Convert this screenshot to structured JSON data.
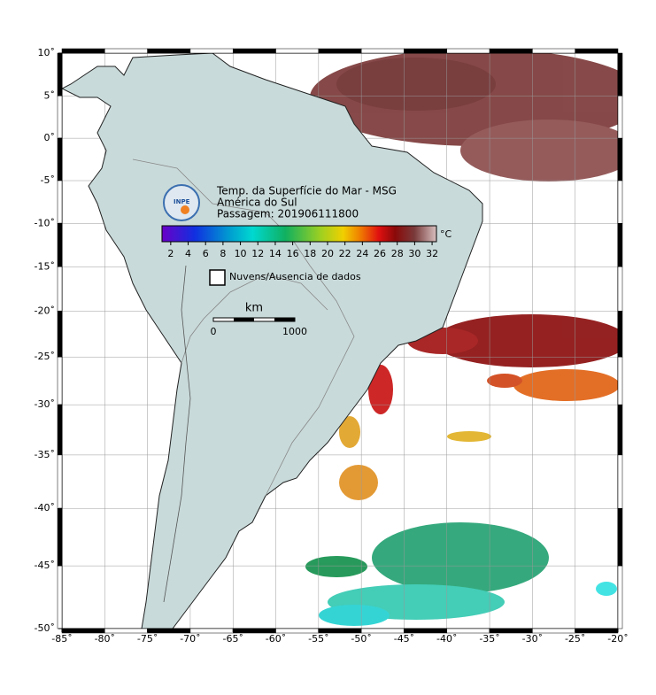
{
  "map": {
    "xlim": [
      -85,
      -20
    ],
    "ylim": [
      -50,
      10
    ],
    "xticks": [
      {
        "value": -85,
        "label": "-85˚"
      },
      {
        "value": -80,
        "label": "-80˚"
      },
      {
        "value": -75,
        "label": "-75˚"
      },
      {
        "value": -70,
        "label": "-70˚"
      },
      {
        "value": -65,
        "label": "-65˚"
      },
      {
        "value": -60,
        "label": "-60˚"
      },
      {
        "value": -55,
        "label": "-55˚"
      },
      {
        "value": -50,
        "label": "-50˚"
      },
      {
        "value": -45,
        "label": "-45˚"
      },
      {
        "value": -40,
        "label": "-40˚"
      },
      {
        "value": -35,
        "label": "-35˚"
      },
      {
        "value": -30,
        "label": "-30˚"
      },
      {
        "value": -25,
        "label": "-25˚"
      },
      {
        "value": -20,
        "label": "-20˚"
      }
    ],
    "yticks": [
      {
        "value": 10,
        "label": "10˚"
      },
      {
        "value": 5,
        "label": "5˚"
      },
      {
        "value": 0,
        "label": "0˚"
      },
      {
        "value": -5,
        "label": "-5˚"
      },
      {
        "value": -10,
        "label": "-10˚"
      },
      {
        "value": -15,
        "label": "-15˚"
      },
      {
        "value": -20,
        "label": "-20˚"
      },
      {
        "value": -25,
        "label": "-25˚"
      },
      {
        "value": -30,
        "label": "-30˚"
      },
      {
        "value": -35,
        "label": "-35˚"
      },
      {
        "value": -40,
        "label": "-40˚"
      },
      {
        "value": -45,
        "label": "-45˚"
      },
      {
        "value": -50,
        "label": "-50˚"
      }
    ],
    "projection": "mercator",
    "grid": true
  },
  "legend": {
    "logo_text": "INPE",
    "title": "Temp. da Superfície do Mar - MSG",
    "subtitle": "América do Sul",
    "pass": "Passagem: 201906111800",
    "colorbar": {
      "lim": [
        1,
        32.5
      ],
      "ticks": [
        2,
        4,
        6,
        8,
        10,
        12,
        14,
        16,
        18,
        20,
        22,
        24,
        26,
        28,
        30,
        32
      ],
      "unit": "°C"
    },
    "no_data_label": "Nuvens/Ausencia de dados",
    "scale_bar": {
      "unit": "km",
      "start": "0",
      "end": "1000"
    }
  }
}
